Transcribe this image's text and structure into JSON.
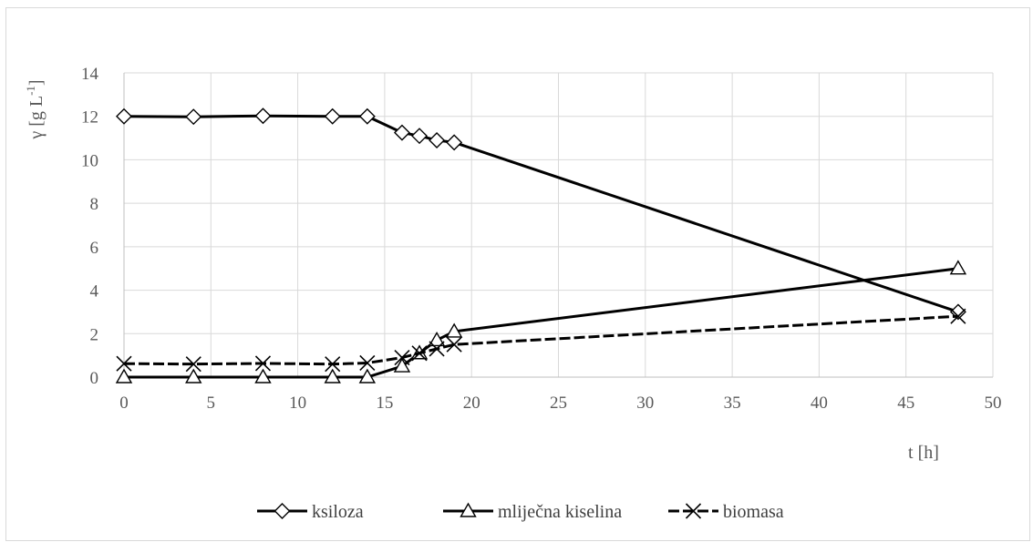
{
  "chart_data": {
    "type": "line",
    "title": "",
    "xlabel": "t [h]",
    "ylabel": "γ [g L",
    "ylabel_superscript": "-1",
    "ylabel_suffix": "]",
    "xlim": [
      0,
      50
    ],
    "ylim": [
      0,
      14
    ],
    "x_ticks": [
      0,
      5,
      10,
      15,
      20,
      25,
      30,
      35,
      40,
      45,
      50
    ],
    "y_ticks": [
      0,
      2,
      4,
      6,
      8,
      10,
      12,
      14
    ],
    "grid": true,
    "legend_position": "bottom",
    "series": [
      {
        "name": "ksiloza",
        "marker": "diamond",
        "line": "solid",
        "color": "#000000",
        "x": [
          0,
          4,
          8,
          12,
          14,
          16,
          17,
          18,
          19,
          48
        ],
        "y": [
          12.0,
          11.98,
          12.02,
          12.0,
          12.0,
          11.25,
          11.1,
          10.9,
          10.8,
          3.0
        ]
      },
      {
        "name": "mliječna kiselina",
        "marker": "triangle",
        "line": "solid",
        "color": "#000000",
        "x": [
          0,
          4,
          8,
          12,
          14,
          16,
          17,
          18,
          19,
          48
        ],
        "y": [
          0.0,
          0.0,
          0.0,
          0.0,
          0.0,
          0.5,
          1.1,
          1.7,
          2.1,
          5.0
        ]
      },
      {
        "name": "biomasa",
        "marker": "x",
        "line": "dashed",
        "color": "#000000",
        "x": [
          0,
          4,
          8,
          12,
          14,
          16,
          17,
          18,
          19,
          48
        ],
        "y": [
          0.62,
          0.6,
          0.63,
          0.6,
          0.65,
          0.9,
          1.1,
          1.3,
          1.5,
          2.8
        ]
      }
    ]
  }
}
